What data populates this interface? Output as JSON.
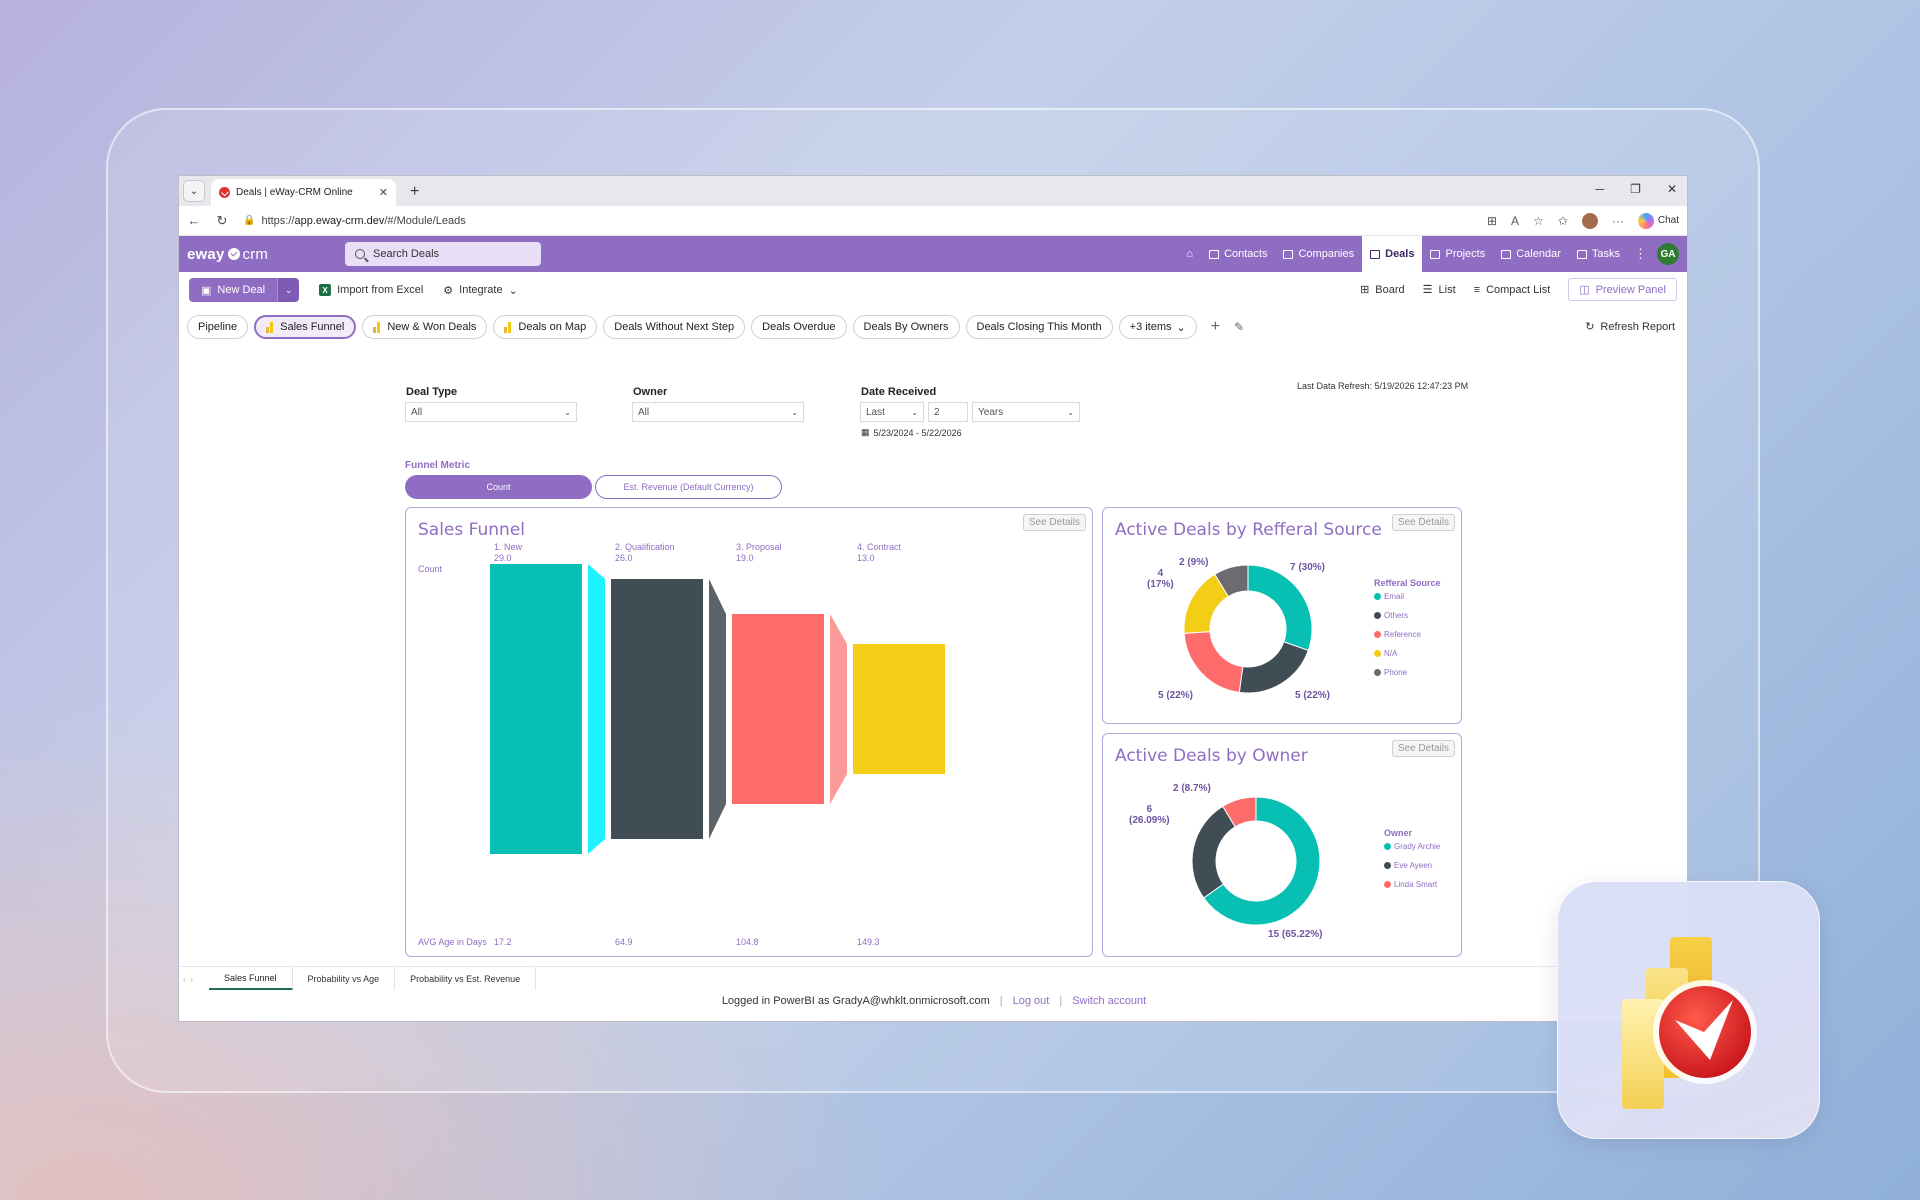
{
  "browser": {
    "tab_title": "Deals | eWay-CRM Online",
    "url_prefix": "https://",
    "url_main": "app.eway-crm.dev",
    "url_path": "/#/Module/Leads",
    "chat_label": "Chat"
  },
  "app": {
    "logo_eway": "eway",
    "logo_crm": "crm",
    "search_placeholder": "Search Deals",
    "nav": [
      "Contacts",
      "Companies",
      "Deals",
      "Projects",
      "Calendar",
      "Tasks"
    ],
    "avatar_initials": "GA",
    "accent_color": "#8f6dc3"
  },
  "toolbar": {
    "new_deal": "New Deal",
    "import_excel": "Import from Excel",
    "integrate": "Integrate",
    "board": "Board",
    "list": "List",
    "compact_list": "Compact List",
    "preview_panel": "Preview Panel"
  },
  "report_tabs": {
    "items": [
      "Pipeline",
      "Sales Funnel",
      "New & Won Deals",
      "Deals on Map",
      "Deals Without Next Step",
      "Deals Overdue",
      "Deals By Owners",
      "Deals Closing This Month",
      "+3 items"
    ],
    "active": "Sales Funnel",
    "refresh": "Refresh Report"
  },
  "filters": {
    "deal_type_label": "Deal Type",
    "deal_type_value": "All",
    "owner_label": "Owner",
    "owner_value": "All",
    "date_label": "Date Received",
    "date_mode": "Last",
    "date_count": "2",
    "date_unit": "Years",
    "date_range": "5/23/2024 - 5/22/2026",
    "last_refresh": "Last Data Refresh: 5/19/2026 12:47:23 PM"
  },
  "metric": {
    "label": "Funnel Metric",
    "count": "Count",
    "revenue": "Est. Revenue (Default Currency)"
  },
  "see_details": "See Details",
  "chart_data": [
    {
      "type": "funnel",
      "title": "Sales Funnel",
      "row_label_count": "Count",
      "row_label_age": "AVG Age in Days",
      "categories": [
        "1. New",
        "2. Qualification",
        "3. Proposal",
        "4. Contract"
      ],
      "count_labels": [
        "29.0",
        "26.0",
        "19.0",
        "13.0"
      ],
      "values": [
        29,
        26,
        19,
        13
      ],
      "avg_age": [
        "17.2",
        "64.9",
        "104.8",
        "149.3"
      ],
      "colors": [
        "#07c0b3",
        "#414d55",
        "#fd6b6a",
        "#f3cd16"
      ],
      "connector_colors": [
        "#1ef1ff",
        "#5b6369",
        "#fb9999"
      ]
    },
    {
      "type": "pie",
      "title": "Active Deals by Refferal Source",
      "legend_title": "Refferal Source",
      "categories": [
        "Email",
        "Others",
        "Reference",
        "N/A",
        "Phone"
      ],
      "values": [
        7,
        5,
        5,
        4,
        2
      ],
      "labels": [
        "7 (30%)",
        "5 (22%)",
        "5 (22%)",
        "4\n(17%)",
        "2 (9%)"
      ],
      "colors": [
        "#07c0b3",
        "#414d55",
        "#fd6b6a",
        "#f3cd16",
        "#6b6b70"
      ]
    },
    {
      "type": "pie",
      "title": "Active Deals by Owner",
      "legend_title": "Owner",
      "categories": [
        "Grady Archie",
        "Eve Ayeen",
        "Linda Smart"
      ],
      "values": [
        15,
        6,
        2
      ],
      "labels": [
        "15 (65.22%)",
        "6\n(26.09%)",
        "2 (8.7%)"
      ],
      "colors": [
        "#07c0b3",
        "#414d55",
        "#fd6b6a"
      ]
    }
  ],
  "page_tabs": [
    "Sales Funnel",
    "Probability vs Age",
    "Probability vs Est. Revenue"
  ],
  "footer": {
    "logged_in": "Logged in PowerBI as GradyA@whklt.onmicrosoft.com",
    "log_out": "Log out",
    "switch_account": "Switch account"
  }
}
